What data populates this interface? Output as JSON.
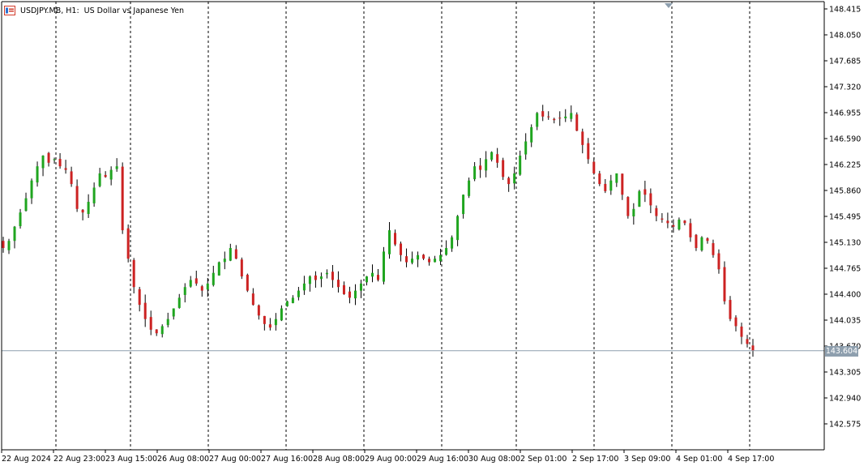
{
  "title": {
    "symbol": "USDJPY.MB, H1:",
    "description": "US Dollar vs Japanese Yen"
  },
  "current_price": "143.604",
  "colors": {
    "bull": "#1fa51f",
    "bear": "#cc2222",
    "axis": "#000000",
    "price_line": "#8e9fae",
    "tag_bg": "#8e9fae"
  },
  "chart_data": {
    "type": "candlestick",
    "symbol": "USDJPY.MB",
    "timeframe": "H1",
    "ylim": [
      142.3,
      148.5
    ],
    "y_ticks": [
      "148.415",
      "148.050",
      "147.685",
      "147.320",
      "146.955",
      "146.590",
      "146.225",
      "145.860",
      "145.495",
      "145.130",
      "144.765",
      "144.400",
      "144.035",
      "143.670",
      "143.305",
      "142.940",
      "142.575"
    ],
    "x_ticks": [
      "22 Aug 2024",
      "22 Aug 23:00",
      "23 Aug 15:00",
      "26 Aug 08:00",
      "27 Aug 00:00",
      "27 Aug 16:00",
      "28 Aug 08:00",
      "29 Aug 00:00",
      "29 Aug 16:00",
      "30 Aug 08:00",
      "2 Sep 01:00",
      "2 Sep 17:00",
      "3 Sep 09:00",
      "4 Sep 01:00",
      "4 Sep 17:00"
    ],
    "period_separators": 10,
    "current_price": 143.604,
    "close_series": [
      145.05,
      145.15,
      145.35,
      145.55,
      145.75,
      146.0,
      146.2,
      146.35,
      146.25,
      146.3,
      146.2,
      146.15,
      145.95,
      145.6,
      145.55,
      145.7,
      145.9,
      146.1,
      146.05,
      146.15,
      146.2,
      145.3,
      144.9,
      144.5,
      144.25,
      144.05,
      143.9,
      143.85,
      143.95,
      144.05,
      144.2,
      144.35,
      144.5,
      144.6,
      144.55,
      144.45,
      144.55,
      144.7,
      144.85,
      144.9,
      145.05,
      144.9,
      144.65,
      144.45,
      144.25,
      144.1,
      143.98,
      143.93,
      144.05,
      144.2,
      144.3,
      144.35,
      144.45,
      144.55,
      144.65,
      144.6,
      144.65,
      144.7,
      144.6,
      144.5,
      144.4,
      144.35,
      144.45,
      144.55,
      144.65,
      144.7,
      144.6,
      145.0,
      145.3,
      145.1,
      144.95,
      144.85,
      144.9,
      144.95,
      144.9,
      144.85,
      144.9,
      144.95,
      145.05,
      145.2,
      145.5,
      145.8,
      146.0,
      146.2,
      146.15,
      146.3,
      146.4,
      146.25,
      146.05,
      145.95,
      146.1,
      146.35,
      146.55,
      146.75,
      146.95,
      146.9,
      146.9,
      146.85,
      146.88,
      146.9,
      146.95,
      146.7,
      146.5,
      146.3,
      146.1,
      145.95,
      145.85,
      146.0,
      146.1,
      145.8,
      145.5,
      145.6,
      145.85,
      145.8,
      145.65,
      145.5,
      145.45,
      145.4,
      145.35,
      145.45,
      145.4,
      145.2,
      145.05,
      145.2,
      145.15,
      144.95,
      144.75,
      144.3,
      144.05,
      143.95,
      143.8,
      143.7,
      143.604
    ]
  }
}
